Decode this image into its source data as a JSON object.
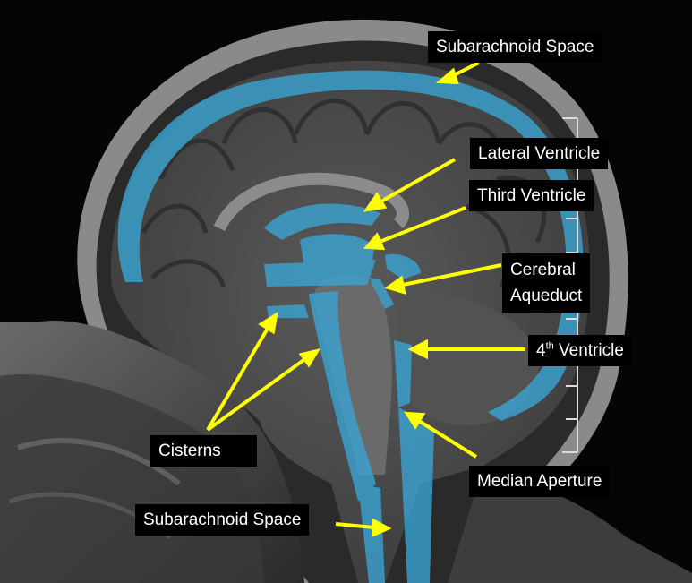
{
  "labels": {
    "subarachnoid_top": "Subarachnoid Space",
    "lateral_ventricle": "Lateral Ventricle",
    "third_ventricle": "Third Ventricle",
    "cerebral_line1": "Cerebral",
    "cerebral_line2": "Aqueduct",
    "fourth_prefix": "4",
    "fourth_sup": "th",
    "fourth_suffix": " Ventricle",
    "cisterns": "Cisterns",
    "median_aperture": "Median Aperture",
    "subarachnoid_bottom": "Subarachnoid Space"
  },
  "colors": {
    "csf_overlay": "#3aa6d6",
    "arrow": "#ffff00",
    "label_bg": "#000000",
    "label_text": "#ffffff"
  }
}
